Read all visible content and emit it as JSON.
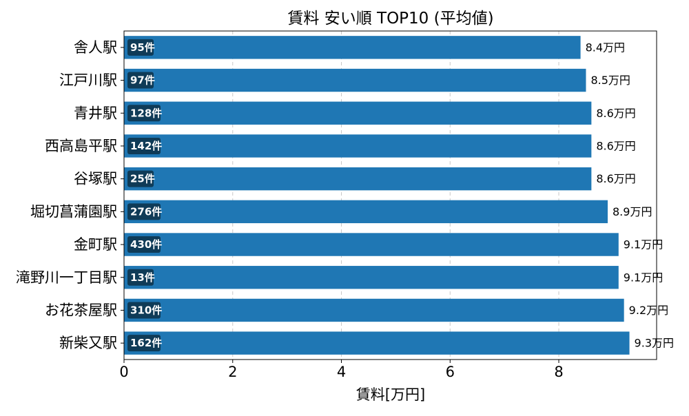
{
  "chart_data": {
    "type": "bar",
    "orientation": "horizontal",
    "title": "賃料 安い順 TOP10 (平均値)",
    "xlabel": "賃料[万円]",
    "ylabel": "",
    "xlim": [
      0,
      9.8
    ],
    "x_ticks": [
      0,
      2,
      4,
      6,
      8
    ],
    "grid": {
      "x": true,
      "y": false,
      "style": "dashed"
    },
    "categories": [
      "舎人駅",
      "江戸川駅",
      "青井駅",
      "西高島平駅",
      "谷塚駅",
      "堀切菖蒲園駅",
      "金町駅",
      "滝野川一丁目駅",
      "お花茶屋駅",
      "新柴又駅"
    ],
    "values": [
      8.4,
      8.5,
      8.6,
      8.6,
      8.6,
      8.9,
      9.1,
      9.1,
      9.2,
      9.3
    ],
    "value_labels": [
      "8.4万円",
      "8.5万円",
      "8.6万円",
      "8.6万円",
      "8.6万円",
      "8.9万円",
      "9.1万円",
      "9.1万円",
      "9.2万円",
      "9.3万円"
    ],
    "count_labels": [
      "95件",
      "97件",
      "128件",
      "142件",
      "25件",
      "276件",
      "430件",
      "13件",
      "310件",
      "162件"
    ],
    "colors": {
      "bar": "#1f77b4",
      "count_badge": "#0f3b57",
      "grid": "#c8c8c8",
      "axis": "#000000"
    }
  }
}
